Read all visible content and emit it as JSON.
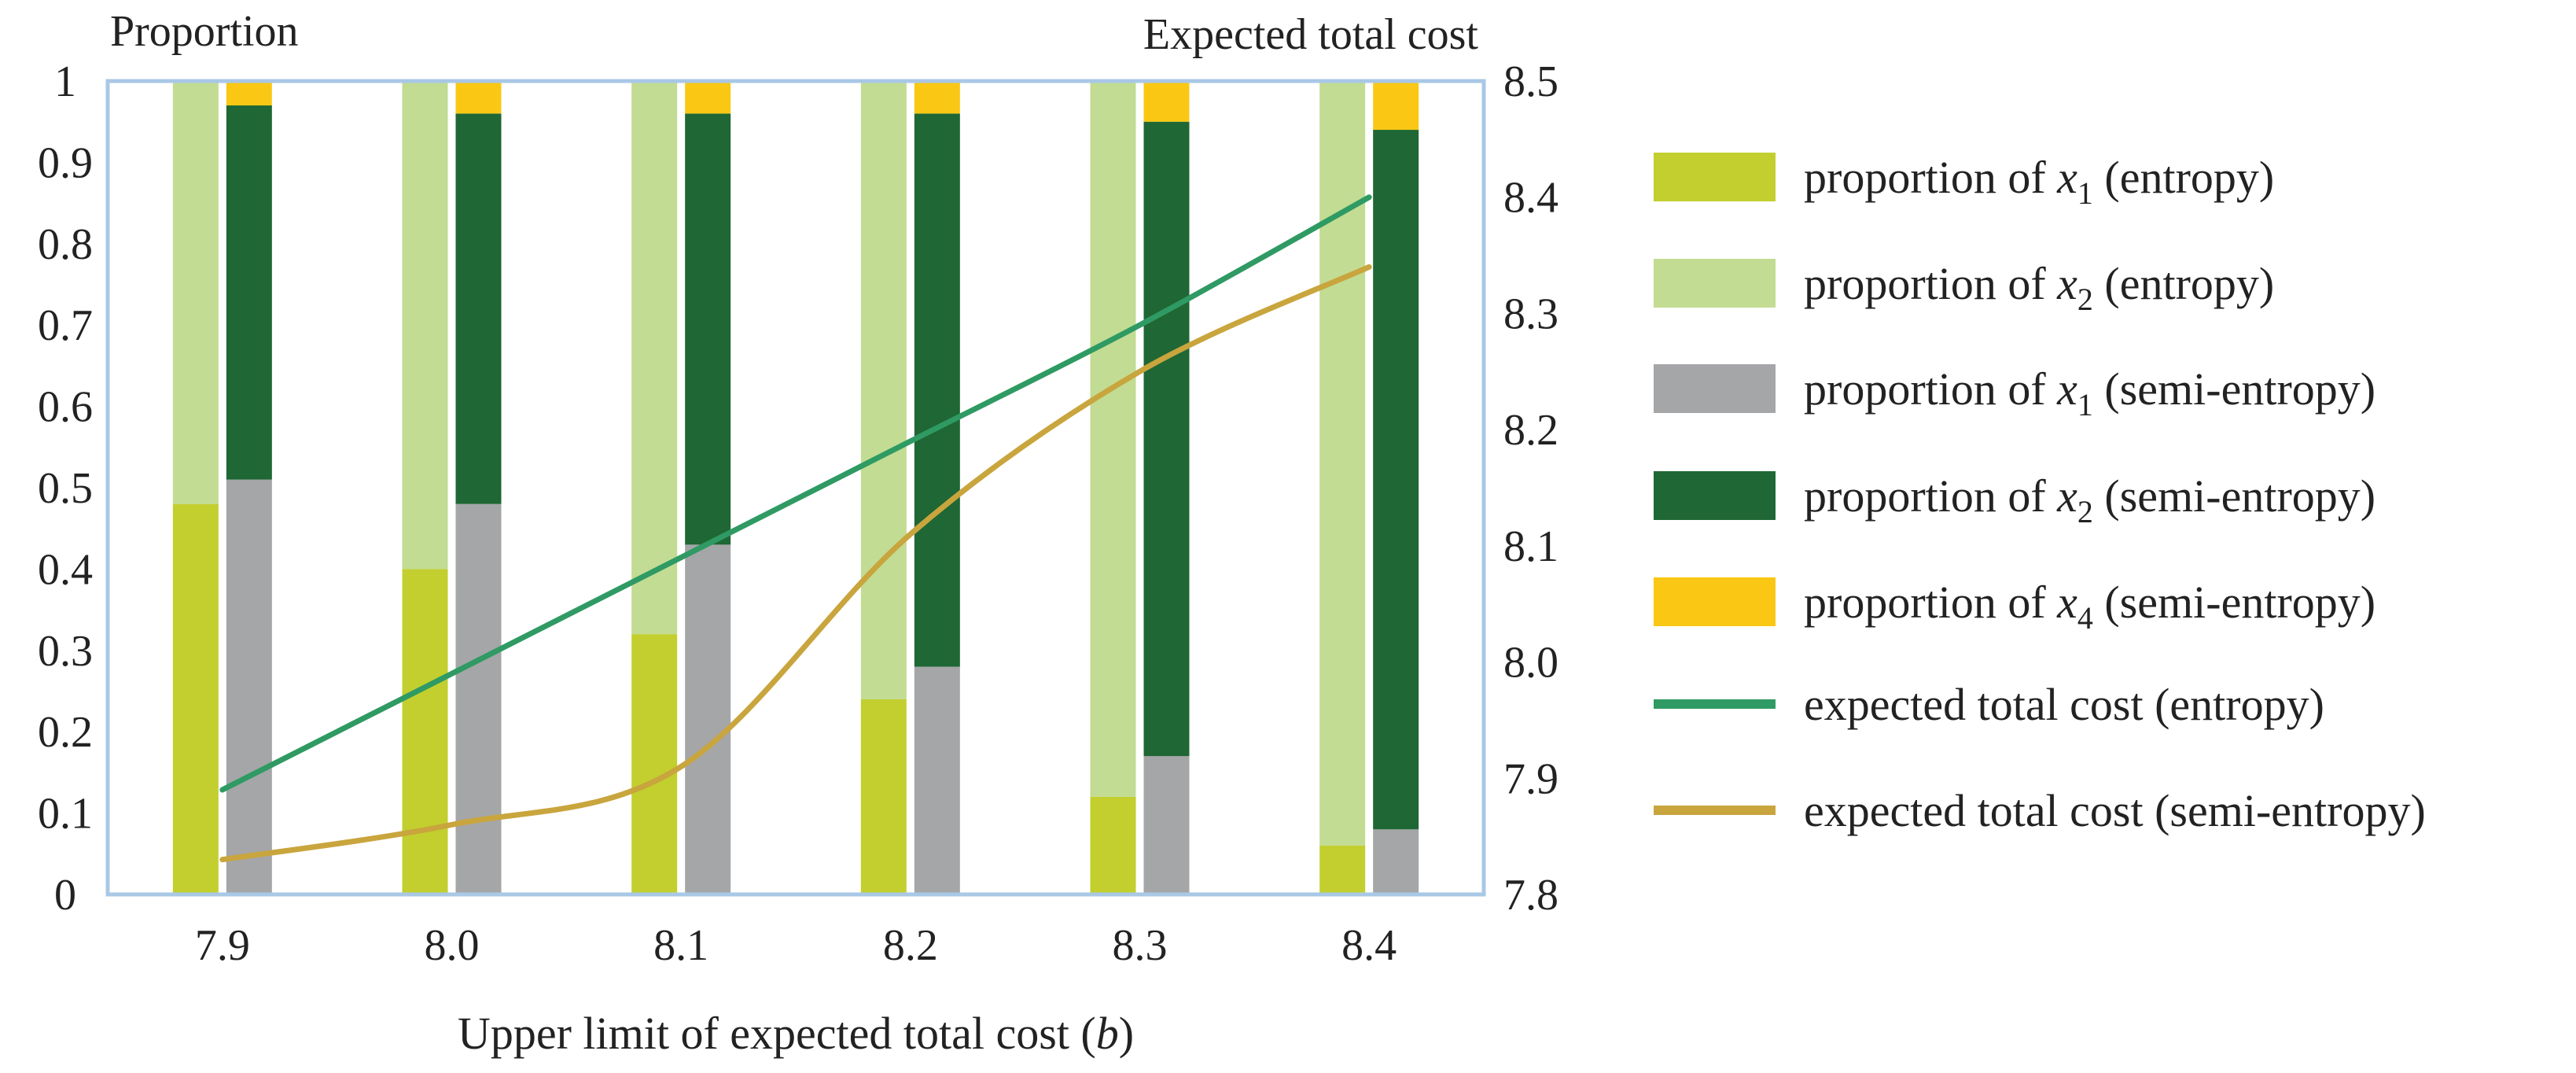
{
  "chart_data": {
    "type": "bar",
    "left_axis_title": "Proportion",
    "right_axis_title": "Expected total cost",
    "xlabel": "Upper limit of expected total cost (b)",
    "categories": [
      "7.9",
      "8.0",
      "8.1",
      "8.2",
      "8.3",
      "8.4"
    ],
    "y_left": {
      "min": 0,
      "max": 1,
      "ticks": [
        "0",
        "0.1",
        "0.2",
        "0.3",
        "0.4",
        "0.5",
        "0.6",
        "0.7",
        "0.8",
        "0.9",
        "1"
      ]
    },
    "y_right": {
      "min": 7.8,
      "max": 8.5,
      "ticks": [
        "7.8",
        "7.9",
        "8.0",
        "8.1",
        "8.2",
        "8.3",
        "8.4",
        "8.5"
      ]
    },
    "stacks": [
      {
        "name": "entropy",
        "series": [
          {
            "name": "proportion of x1 (entropy)",
            "color": "#c2cf2f",
            "values": [
              0.48,
              0.4,
              0.32,
              0.24,
              0.12,
              0.06
            ]
          },
          {
            "name": "proportion of x2 (entropy)",
            "color": "#c2dc93",
            "values": [
              0.52,
              0.6,
              0.68,
              0.76,
              0.88,
              0.94
            ]
          }
        ]
      },
      {
        "name": "semi-entropy",
        "series": [
          {
            "name": "proportion of x1 (semi-entropy)",
            "color": "#a5a6a8",
            "values": [
              0.51,
              0.48,
              0.43,
              0.28,
              0.17,
              0.08
            ]
          },
          {
            "name": "proportion of x2 (semi-entropy)",
            "color": "#1f6734",
            "values": [
              0.46,
              0.48,
              0.53,
              0.68,
              0.78,
              0.86
            ]
          },
          {
            "name": "proportion of x4 (semi-entropy)",
            "color": "#fac814",
            "values": [
              0.03,
              0.04,
              0.04,
              0.04,
              0.05,
              0.06
            ]
          }
        ]
      }
    ],
    "lines": [
      {
        "name": "expected total cost (entropy)",
        "color": "#2f9a63",
        "axis": "right",
        "values": [
          7.89,
          7.99,
          8.09,
          8.19,
          8.29,
          8.4
        ]
      },
      {
        "name": "expected total cost (semi-entropy)",
        "color": "#c9a53d",
        "axis": "right",
        "values": [
          7.83,
          7.86,
          7.91,
          8.11,
          8.25,
          8.34
        ]
      }
    ],
    "legend": {
      "placement": "right",
      "items": [
        {
          "kind": "box",
          "color": "#c2cf2f",
          "prefix": "proportion of ",
          "var": "x",
          "sub": "1",
          "suffix": " (entropy)"
        },
        {
          "kind": "box",
          "color": "#c2dc93",
          "prefix": "proportion of ",
          "var": "x",
          "sub": "2",
          "suffix": " (entropy)"
        },
        {
          "kind": "box",
          "color": "#a5a6a8",
          "prefix": "proportion of ",
          "var": "x",
          "sub": "1",
          "suffix": " (semi-entropy)"
        },
        {
          "kind": "box",
          "color": "#1f6734",
          "prefix": "proportion of ",
          "var": "x",
          "sub": "2",
          "suffix": " (semi-entropy)"
        },
        {
          "kind": "box",
          "color": "#fac814",
          "prefix": "proportion of ",
          "var": "x",
          "sub": "4",
          "suffix": " (semi-entropy)"
        },
        {
          "kind": "line",
          "color": "#2f9a63",
          "prefix": "expected total cost (entropy)",
          "var": "",
          "sub": "",
          "suffix": ""
        },
        {
          "kind": "line",
          "color": "#c9a53d",
          "prefix": "expected total cost (semi-entropy)",
          "var": "",
          "sub": "",
          "suffix": ""
        }
      ]
    },
    "frame_color": "#a9c8e6",
    "grid": false
  }
}
